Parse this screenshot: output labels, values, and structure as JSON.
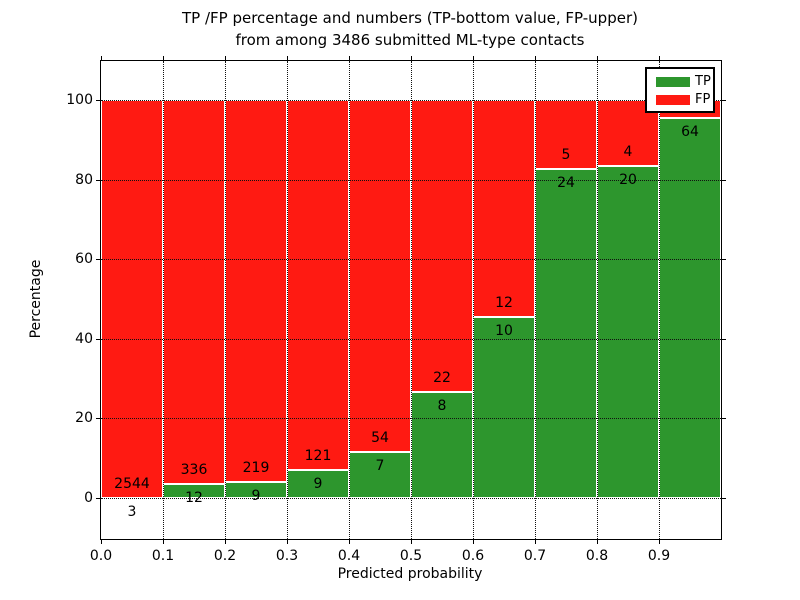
{
  "title": {
    "line1": "TP /FP percentage and numbers (TP-bottom value, FP-upper)",
    "line2": "from among 3486 submitted ML-type contacts"
  },
  "axes": {
    "xlabel": "Predicted probability",
    "ylabel": "Percentage",
    "xticks": [
      "0.0",
      "0.1",
      "0.2",
      "0.3",
      "0.4",
      "0.5",
      "0.6",
      "0.7",
      "0.8",
      "0.9"
    ],
    "yticks": [
      "0",
      "20",
      "40",
      "60",
      "80",
      "100"
    ]
  },
  "legend": {
    "items": [
      {
        "label": "TP",
        "color": "#2d962d"
      },
      {
        "label": "FP",
        "color": "#ff1a12"
      }
    ]
  },
  "chart_data": {
    "type": "bar",
    "stacked": true,
    "title": "TP /FP percentage and numbers (TP-bottom value, FP-upper) from among 3486 submitted ML-type contacts",
    "xlabel": "Predicted probability",
    "ylabel": "Percentage",
    "x_bins": [
      "0.0-0.1",
      "0.1-0.2",
      "0.2-0.3",
      "0.3-0.4",
      "0.4-0.5",
      "0.5-0.6",
      "0.6-0.7",
      "0.7-0.8",
      "0.8-0.9",
      "0.9-1.0"
    ],
    "series": [
      {
        "name": "TP",
        "color": "#2d962d",
        "counts": [
          3,
          12,
          9,
          9,
          7,
          8,
          10,
          24,
          20,
          64
        ]
      },
      {
        "name": "FP",
        "color": "#ff1a12",
        "counts": [
          2544,
          336,
          219,
          121,
          54,
          22,
          12,
          5,
          4,
          null
        ]
      }
    ],
    "tp_percent": [
      0.12,
      3.45,
      3.95,
      6.92,
      11.48,
      26.67,
      45.45,
      82.76,
      83.33,
      95.5
    ],
    "bar_labels": {
      "tp": [
        "3",
        "12",
        "9",
        "9",
        "7",
        "8",
        "10",
        "24",
        "20",
        "64"
      ],
      "fp": [
        "2544",
        "336",
        "219",
        "121",
        "54",
        "22",
        "12",
        "5",
        "4",
        ""
      ]
    },
    "ylim": [
      -10,
      110
    ],
    "xlim": [
      0.0,
      1.0
    ],
    "grid": "dotted",
    "legend_position": "upper right"
  }
}
